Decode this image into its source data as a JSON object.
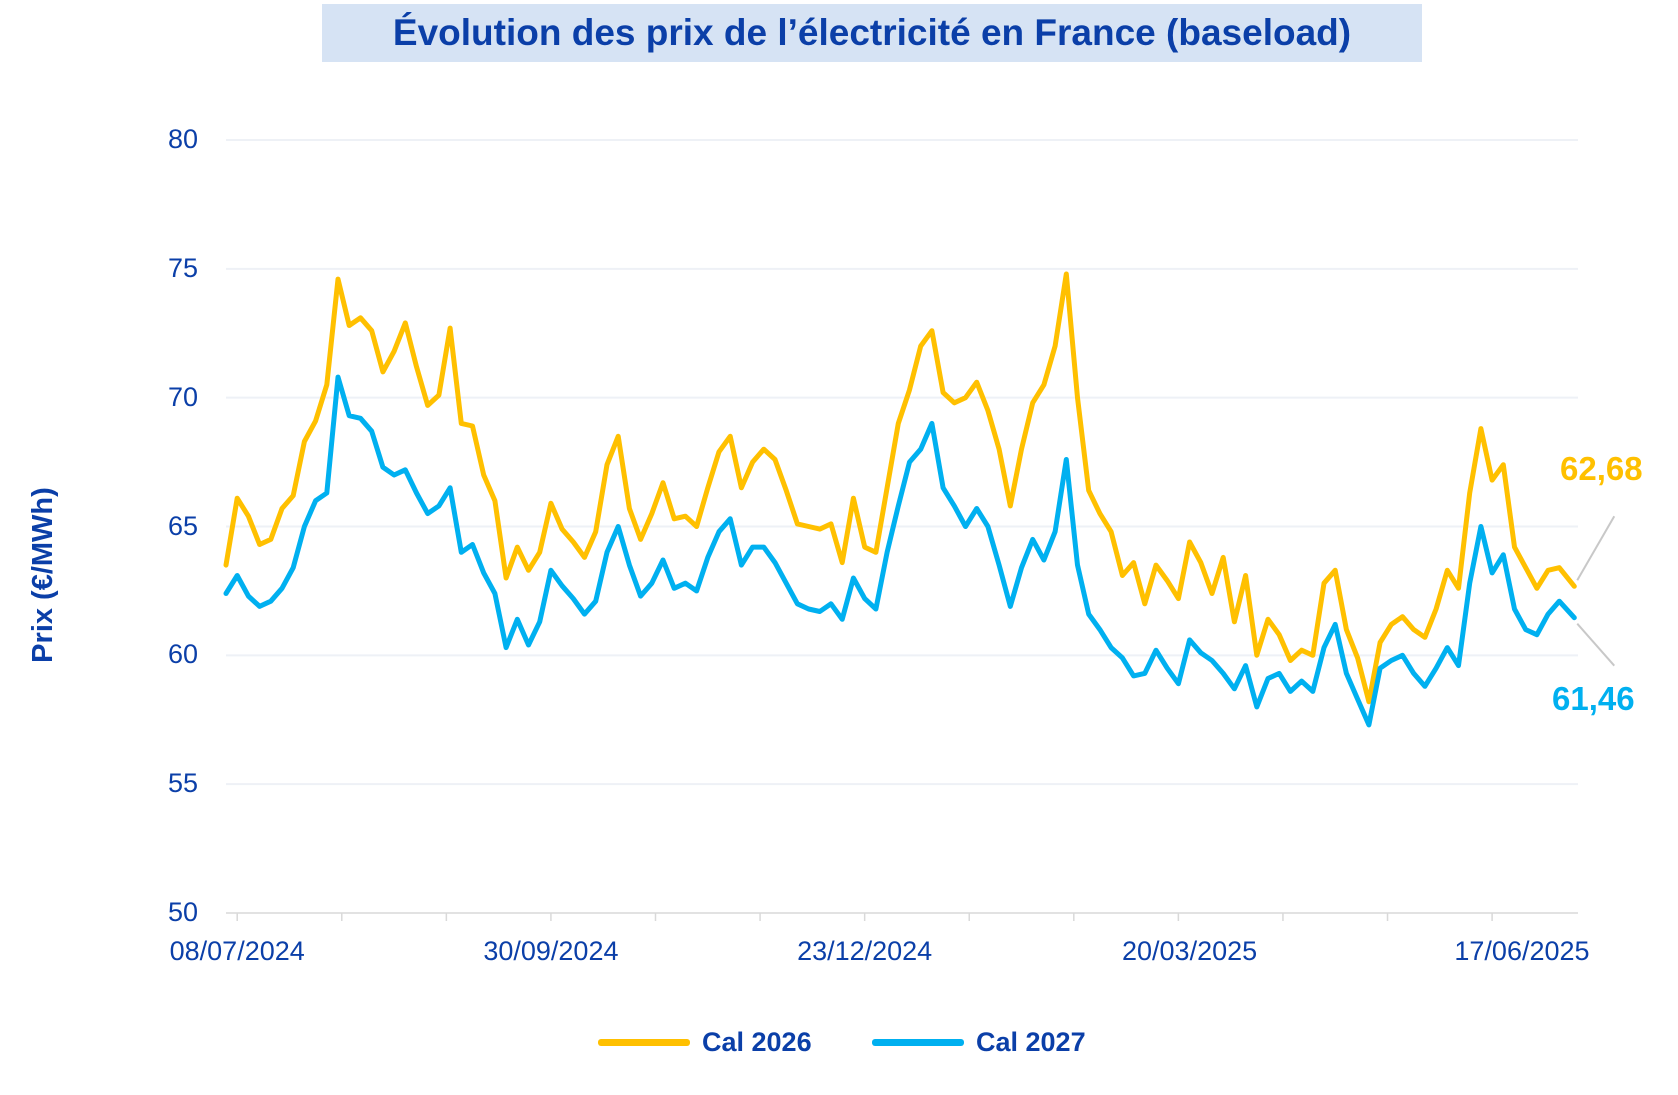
{
  "title": "Évolution des prix de l’électricité en France (baseload)",
  "chart_data": {
    "type": "line",
    "ylabel": "Prix (€/MWh)",
    "ylim": [
      50,
      80
    ],
    "yticks": [
      "50",
      "55",
      "60",
      "65",
      "70",
      "75",
      "80"
    ],
    "x_tick_labels": [
      "08/07/2024",
      "30/09/2024",
      "23/12/2024",
      "20/03/2025",
      "17/06/2025"
    ],
    "x_tick_dates": [
      "2024-07-08",
      "2024-09-30",
      "2024-12-23",
      "2025-03-20",
      "2025-06-17"
    ],
    "x_range": [
      "2024-07-05",
      "2025-07-02"
    ],
    "grid": "horizontal",
    "legend": "bottom-center",
    "series": [
      {
        "name": "Cal 2026",
        "color": "#ffc000",
        "end_label": "62,68",
        "points": [
          [
            "2024-07-05",
            63.5
          ],
          [
            "2024-07-08",
            66.1
          ],
          [
            "2024-07-11",
            65.4
          ],
          [
            "2024-07-14",
            64.3
          ],
          [
            "2024-07-17",
            64.5
          ],
          [
            "2024-07-20",
            65.7
          ],
          [
            "2024-07-23",
            66.2
          ],
          [
            "2024-07-26",
            68.3
          ],
          [
            "2024-07-29",
            69.1
          ],
          [
            "2024-08-01",
            70.5
          ],
          [
            "2024-08-04",
            74.6
          ],
          [
            "2024-08-07",
            72.8
          ],
          [
            "2024-08-10",
            73.1
          ],
          [
            "2024-08-13",
            72.6
          ],
          [
            "2024-08-16",
            71.0
          ],
          [
            "2024-08-19",
            71.8
          ],
          [
            "2024-08-22",
            72.9
          ],
          [
            "2024-08-25",
            71.2
          ],
          [
            "2024-08-28",
            69.7
          ],
          [
            "2024-08-31",
            70.1
          ],
          [
            "2024-09-03",
            72.7
          ],
          [
            "2024-09-06",
            69.0
          ],
          [
            "2024-09-09",
            68.9
          ],
          [
            "2024-09-12",
            67.0
          ],
          [
            "2024-09-15",
            66.0
          ],
          [
            "2024-09-18",
            63.0
          ],
          [
            "2024-09-21",
            64.2
          ],
          [
            "2024-09-24",
            63.3
          ],
          [
            "2024-09-27",
            64.0
          ],
          [
            "2024-09-30",
            65.9
          ],
          [
            "2024-10-03",
            64.9
          ],
          [
            "2024-10-06",
            64.4
          ],
          [
            "2024-10-09",
            63.8
          ],
          [
            "2024-10-12",
            64.8
          ],
          [
            "2024-10-15",
            67.4
          ],
          [
            "2024-10-18",
            68.5
          ],
          [
            "2024-10-21",
            65.7
          ],
          [
            "2024-10-24",
            64.5
          ],
          [
            "2024-10-27",
            65.5
          ],
          [
            "2024-10-30",
            66.7
          ],
          [
            "2024-11-02",
            65.3
          ],
          [
            "2024-11-05",
            65.4
          ],
          [
            "2024-11-08",
            65.0
          ],
          [
            "2024-11-11",
            66.5
          ],
          [
            "2024-11-14",
            67.9
          ],
          [
            "2024-11-17",
            68.5
          ],
          [
            "2024-11-20",
            66.5
          ],
          [
            "2024-11-23",
            67.5
          ],
          [
            "2024-11-26",
            68.0
          ],
          [
            "2024-11-29",
            67.6
          ],
          [
            "2024-12-02",
            66.4
          ],
          [
            "2024-12-05",
            65.1
          ],
          [
            "2024-12-08",
            65.0
          ],
          [
            "2024-12-11",
            64.9
          ],
          [
            "2024-12-14",
            65.1
          ],
          [
            "2024-12-17",
            63.6
          ],
          [
            "2024-12-20",
            66.1
          ],
          [
            "2024-12-23",
            64.2
          ],
          [
            "2024-12-26",
            64.0
          ],
          [
            "2024-12-29",
            66.5
          ],
          [
            "2025-01-01",
            69.0
          ],
          [
            "2025-01-04",
            70.3
          ],
          [
            "2025-01-07",
            72.0
          ],
          [
            "2025-01-10",
            72.6
          ],
          [
            "2025-01-13",
            70.2
          ],
          [
            "2025-01-16",
            69.8
          ],
          [
            "2025-01-19",
            70.0
          ],
          [
            "2025-01-22",
            70.6
          ],
          [
            "2025-01-25",
            69.5
          ],
          [
            "2025-01-28",
            68.0
          ],
          [
            "2025-01-31",
            65.8
          ],
          [
            "2025-02-03",
            68.0
          ],
          [
            "2025-02-06",
            69.8
          ],
          [
            "2025-02-09",
            70.5
          ],
          [
            "2025-02-12",
            72.0
          ],
          [
            "2025-02-15",
            74.8
          ],
          [
            "2025-02-18",
            70.0
          ],
          [
            "2025-02-21",
            66.4
          ],
          [
            "2025-02-24",
            65.5
          ],
          [
            "2025-02-27",
            64.8
          ],
          [
            "2025-03-02",
            63.1
          ],
          [
            "2025-03-05",
            63.6
          ],
          [
            "2025-03-08",
            62.0
          ],
          [
            "2025-03-11",
            63.5
          ],
          [
            "2025-03-14",
            62.9
          ],
          [
            "2025-03-17",
            62.2
          ],
          [
            "2025-03-20",
            64.4
          ],
          [
            "2025-03-23",
            63.6
          ],
          [
            "2025-03-26",
            62.4
          ],
          [
            "2025-03-29",
            63.8
          ],
          [
            "2025-04-01",
            61.3
          ],
          [
            "2025-04-04",
            63.1
          ],
          [
            "2025-04-07",
            60.0
          ],
          [
            "2025-04-10",
            61.4
          ],
          [
            "2025-04-13",
            60.8
          ],
          [
            "2025-04-16",
            59.8
          ],
          [
            "2025-04-19",
            60.2
          ],
          [
            "2025-04-22",
            60.0
          ],
          [
            "2025-04-25",
            62.8
          ],
          [
            "2025-04-28",
            63.3
          ],
          [
            "2025-05-01",
            61.0
          ],
          [
            "2025-05-04",
            59.9
          ],
          [
            "2025-05-07",
            58.2
          ],
          [
            "2025-05-10",
            60.5
          ],
          [
            "2025-05-13",
            61.2
          ],
          [
            "2025-05-16",
            61.5
          ],
          [
            "2025-05-19",
            61.0
          ],
          [
            "2025-05-22",
            60.7
          ],
          [
            "2025-05-25",
            61.8
          ],
          [
            "2025-05-28",
            63.3
          ],
          [
            "2025-05-31",
            62.6
          ],
          [
            "2025-06-03",
            66.3
          ],
          [
            "2025-06-06",
            68.8
          ],
          [
            "2025-06-09",
            66.8
          ],
          [
            "2025-06-12",
            67.4
          ],
          [
            "2025-06-15",
            64.2
          ],
          [
            "2025-06-18",
            63.4
          ],
          [
            "2025-06-21",
            62.6
          ],
          [
            "2025-06-24",
            63.3
          ],
          [
            "2025-06-27",
            63.4
          ],
          [
            "2025-07-01",
            62.68
          ]
        ]
      },
      {
        "name": "Cal 2027",
        "color": "#00b0f0",
        "end_label": "61,46",
        "points": [
          [
            "2024-07-05",
            62.4
          ],
          [
            "2024-07-08",
            63.1
          ],
          [
            "2024-07-11",
            62.3
          ],
          [
            "2024-07-14",
            61.9
          ],
          [
            "2024-07-17",
            62.1
          ],
          [
            "2024-07-20",
            62.6
          ],
          [
            "2024-07-23",
            63.4
          ],
          [
            "2024-07-26",
            65.0
          ],
          [
            "2024-07-29",
            66.0
          ],
          [
            "2024-08-01",
            66.3
          ],
          [
            "2024-08-04",
            70.8
          ],
          [
            "2024-08-07",
            69.3
          ],
          [
            "2024-08-10",
            69.2
          ],
          [
            "2024-08-13",
            68.7
          ],
          [
            "2024-08-16",
            67.3
          ],
          [
            "2024-08-19",
            67.0
          ],
          [
            "2024-08-22",
            67.2
          ],
          [
            "2024-08-25",
            66.3
          ],
          [
            "2024-08-28",
            65.5
          ],
          [
            "2024-08-31",
            65.8
          ],
          [
            "2024-09-03",
            66.5
          ],
          [
            "2024-09-06",
            64.0
          ],
          [
            "2024-09-09",
            64.3
          ],
          [
            "2024-09-12",
            63.2
          ],
          [
            "2024-09-15",
            62.4
          ],
          [
            "2024-09-18",
            60.3
          ],
          [
            "2024-09-21",
            61.4
          ],
          [
            "2024-09-24",
            60.4
          ],
          [
            "2024-09-27",
            61.3
          ],
          [
            "2024-09-30",
            63.3
          ],
          [
            "2024-10-03",
            62.7
          ],
          [
            "2024-10-06",
            62.2
          ],
          [
            "2024-10-09",
            61.6
          ],
          [
            "2024-10-12",
            62.1
          ],
          [
            "2024-10-15",
            64.0
          ],
          [
            "2024-10-18",
            65.0
          ],
          [
            "2024-10-21",
            63.5
          ],
          [
            "2024-10-24",
            62.3
          ],
          [
            "2024-10-27",
            62.8
          ],
          [
            "2024-10-30",
            63.7
          ],
          [
            "2024-11-02",
            62.6
          ],
          [
            "2024-11-05",
            62.8
          ],
          [
            "2024-11-08",
            62.5
          ],
          [
            "2024-11-11",
            63.8
          ],
          [
            "2024-11-14",
            64.8
          ],
          [
            "2024-11-17",
            65.3
          ],
          [
            "2024-11-20",
            63.5
          ],
          [
            "2024-11-23",
            64.2
          ],
          [
            "2024-11-26",
            64.2
          ],
          [
            "2024-11-29",
            63.6
          ],
          [
            "2024-12-02",
            62.8
          ],
          [
            "2024-12-05",
            62.0
          ],
          [
            "2024-12-08",
            61.8
          ],
          [
            "2024-12-11",
            61.7
          ],
          [
            "2024-12-14",
            62.0
          ],
          [
            "2024-12-17",
            61.4
          ],
          [
            "2024-12-20",
            63.0
          ],
          [
            "2024-12-23",
            62.2
          ],
          [
            "2024-12-26",
            61.8
          ],
          [
            "2024-12-29",
            64.0
          ],
          [
            "2025-01-01",
            65.8
          ],
          [
            "2025-01-04",
            67.5
          ],
          [
            "2025-01-07",
            68.0
          ],
          [
            "2025-01-10",
            69.0
          ],
          [
            "2025-01-13",
            66.5
          ],
          [
            "2025-01-16",
            65.8
          ],
          [
            "2025-01-19",
            65.0
          ],
          [
            "2025-01-22",
            65.7
          ],
          [
            "2025-01-25",
            65.0
          ],
          [
            "2025-01-28",
            63.5
          ],
          [
            "2025-01-31",
            61.9
          ],
          [
            "2025-02-03",
            63.4
          ],
          [
            "2025-02-06",
            64.5
          ],
          [
            "2025-02-09",
            63.7
          ],
          [
            "2025-02-12",
            64.8
          ],
          [
            "2025-02-15",
            67.6
          ],
          [
            "2025-02-18",
            63.5
          ],
          [
            "2025-02-21",
            61.6
          ],
          [
            "2025-02-24",
            61.0
          ],
          [
            "2025-02-27",
            60.3
          ],
          [
            "2025-03-02",
            59.9
          ],
          [
            "2025-03-05",
            59.2
          ],
          [
            "2025-03-08",
            59.3
          ],
          [
            "2025-03-11",
            60.2
          ],
          [
            "2025-03-14",
            59.5
          ],
          [
            "2025-03-17",
            58.9
          ],
          [
            "2025-03-20",
            60.6
          ],
          [
            "2025-03-23",
            60.1
          ],
          [
            "2025-03-26",
            59.8
          ],
          [
            "2025-03-29",
            59.3
          ],
          [
            "2025-04-01",
            58.7
          ],
          [
            "2025-04-04",
            59.6
          ],
          [
            "2025-04-07",
            58.0
          ],
          [
            "2025-04-10",
            59.1
          ],
          [
            "2025-04-13",
            59.3
          ],
          [
            "2025-04-16",
            58.6
          ],
          [
            "2025-04-19",
            59.0
          ],
          [
            "2025-04-22",
            58.6
          ],
          [
            "2025-04-25",
            60.3
          ],
          [
            "2025-04-28",
            61.2
          ],
          [
            "2025-05-01",
            59.3
          ],
          [
            "2025-05-04",
            58.3
          ],
          [
            "2025-05-07",
            57.3
          ],
          [
            "2025-05-10",
            59.5
          ],
          [
            "2025-05-13",
            59.8
          ],
          [
            "2025-05-16",
            60.0
          ],
          [
            "2025-05-19",
            59.3
          ],
          [
            "2025-05-22",
            58.8
          ],
          [
            "2025-05-25",
            59.5
          ],
          [
            "2025-05-28",
            60.3
          ],
          [
            "2025-05-31",
            59.6
          ],
          [
            "2025-06-03",
            62.8
          ],
          [
            "2025-06-06",
            65.0
          ],
          [
            "2025-06-09",
            63.2
          ],
          [
            "2025-06-12",
            63.9
          ],
          [
            "2025-06-15",
            61.8
          ],
          [
            "2025-06-18",
            61.0
          ],
          [
            "2025-06-21",
            60.8
          ],
          [
            "2025-06-24",
            61.6
          ],
          [
            "2025-06-27",
            62.1
          ],
          [
            "2025-07-01",
            61.46
          ]
        ]
      }
    ]
  }
}
